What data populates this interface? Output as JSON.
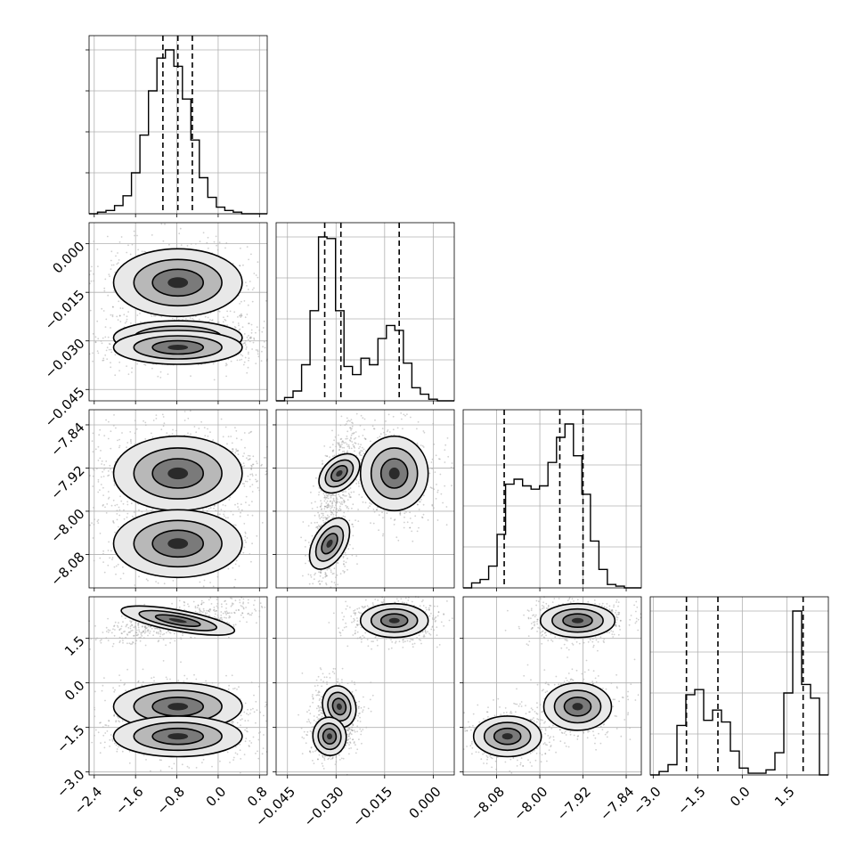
{
  "chart_data": {
    "type": "corner",
    "description_axes": [
      {
        "ticks": [
          -2.4,
          -1.6,
          -0.8,
          0.0,
          0.8
        ],
        "labels": [
          "−2.4",
          "−1.6",
          "−0.8",
          "0.0",
          "0.8"
        ],
        "range": [
          -2.5,
          0.95
        ]
      },
      {
        "ticks": [
          -0.045,
          -0.03,
          -0.015,
          0.0
        ],
        "labels": [
          "−0.045",
          "−0.030",
          "−0.015",
          "0.000"
        ],
        "range": [
          -0.0485,
          0.0065
        ]
      },
      {
        "ticks": [
          -8.08,
          -8.0,
          -7.92,
          -7.84
        ],
        "labels": [
          "−8.08",
          "−8.00",
          "−7.92",
          "−7.84"
        ],
        "range": [
          -8.142,
          -7.812
        ]
      },
      {
        "ticks": [
          -3.0,
          -1.5,
          0.0,
          1.5
        ],
        "labels": [
          "−3.0",
          "−1.5",
          "0.0",
          "1.5"
        ],
        "range": [
          -3.1,
          2.9
        ]
      }
    ],
    "histograms": [
      {
        "counts": [
          0,
          1,
          2,
          5,
          11,
          25,
          48,
          75,
          95,
          100,
          90,
          70,
          45,
          22,
          10,
          4,
          2,
          1,
          0,
          0,
          0
        ],
        "quantiles": [
          -1.07,
          -0.78,
          -0.5
        ]
      },
      {
        "counts": [
          0,
          2,
          6,
          22,
          55,
          100,
          99,
          55,
          21,
          16,
          26,
          22,
          38,
          46,
          43,
          23,
          8,
          4,
          1,
          0,
          0
        ],
        "quantiles": [
          -0.0335,
          -0.0285,
          -0.0105
        ]
      },
      {
        "counts": [
          0,
          3,
          5,
          13,
          32,
          62,
          65,
          61,
          59,
          61,
          75,
          90,
          98,
          79,
          56,
          28,
          11,
          2,
          1,
          0,
          0
        ],
        "quantiles": [
          -8.066,
          -7.963,
          -7.92
        ]
      },
      {
        "counts": [
          0,
          2,
          6,
          29,
          47,
          50,
          32,
          38,
          31,
          14,
          4,
          1,
          1,
          3,
          13,
          48,
          96,
          53,
          45,
          0
        ],
        "quantiles": [
          -1.88,
          -0.82,
          2.05
        ]
      }
    ],
    "modes": [
      {
        "weight": 0.4,
        "mean": [
          -0.78,
          -0.012,
          -7.93,
          2.1
        ]
      },
      {
        "weight": 0.3,
        "mean": [
          -0.78,
          -0.029,
          -7.93,
          -0.8
        ]
      },
      {
        "weight": 0.3,
        "mean": [
          -0.78,
          -0.032,
          -8.06,
          -1.8
        ]
      }
    ],
    "grid": true,
    "contour_levels": 3
  }
}
